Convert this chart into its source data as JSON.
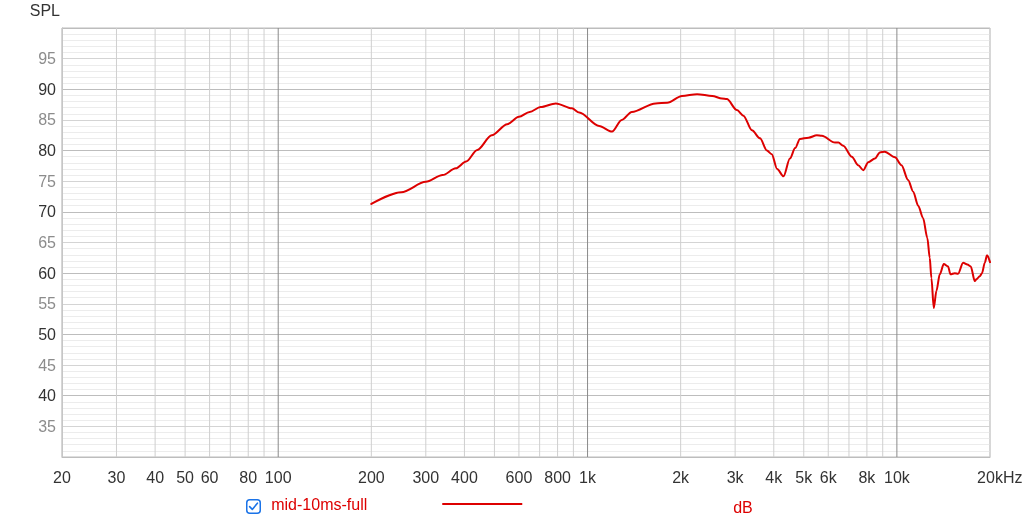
{
  "chart_data": {
    "type": "line",
    "ylabel": "SPL",
    "xlabel": "Hz",
    "annotations": [
      "dB"
    ],
    "log": "x",
    "grid": true,
    "legend": "bottom",
    "marker": "none",
    "line_style": "solid",
    "xlim": [
      20,
      20000
    ],
    "ylim": [
      30,
      100
    ],
    "xticks": [
      20,
      30,
      40,
      50,
      60,
      {
        "value": 70,
        "label": null
      },
      80,
      {
        "value": 90,
        "label": null
      },
      100,
      200,
      300,
      400,
      {
        "value": 500,
        "label": null
      },
      600,
      {
        "value": 700,
        "label": null
      },
      800,
      {
        "value": 900,
        "label": null
      },
      {
        "value": 1000,
        "label": "1k"
      },
      {
        "value": 2000,
        "label": "2k"
      },
      {
        "value": 3000,
        "label": "3k"
      },
      {
        "value": 4000,
        "label": "4k"
      },
      {
        "value": 5000,
        "label": "5k"
      },
      {
        "value": 6000,
        "label": "6k"
      },
      {
        "value": 7000,
        "label": null
      },
      {
        "value": 8000,
        "label": "8k"
      },
      {
        "value": 9000,
        "label": null
      },
      {
        "value": 10000,
        "label": "10k"
      },
      {
        "value": 20000,
        "label": "20k"
      }
    ],
    "yticks": [
      35,
      40,
      45,
      50,
      55,
      60,
      65,
      70,
      75,
      80,
      85,
      90,
      95
    ],
    "series": [
      {
        "name": "mid-10ms-full",
        "color": "#dd0000",
        "x": [
          200,
          250,
          300,
          340,
          375,
          405,
          440,
          490,
          550,
          600,
          650,
          705,
          790,
          890,
          940,
          1090,
          1200,
          1290,
          1390,
          1660,
          1810,
          2020,
          2260,
          2530,
          2720,
          2820,
          3040,
          3190,
          3400,
          3610,
          3800,
          3940,
          4100,
          4300,
          4510,
          4690,
          4860,
          5180,
          5510,
          5720,
          6310,
          6470,
          6710,
          7150,
          7500,
          7790,
          8080,
          8490,
          8810,
          9140,
          9860,
          10350,
          10870,
          11290,
          11720,
          12150,
          12550,
          12770,
          12930,
          13160,
          13420,
          13760,
          14180,
          14640,
          14900,
          15380,
          15770,
          16370,
          16900,
          17330,
          17860,
          18080,
          18530,
          18850,
          19240,
          19560,
          20000
        ],
        "values": [
          71.3,
          73.2,
          74.9,
          76.0,
          77.1,
          78.2,
          80.1,
          82.5,
          84.3,
          85.5,
          86.3,
          87.1,
          87.7,
          86.9,
          86.2,
          84.0,
          83.1,
          85.0,
          86.3,
          87.7,
          87.8,
          88.9,
          89.2,
          88.9,
          88.5,
          88.4,
          86.6,
          85.7,
          83.3,
          82.0,
          80.0,
          79.4,
          77.0,
          75.8,
          78.7,
          80.4,
          81.9,
          82.1,
          82.5,
          82.4,
          81.3,
          81.3,
          80.8,
          79.0,
          77.6,
          76.8,
          78.1,
          78.7,
          79.7,
          79.8,
          78.9,
          77.6,
          75.2,
          73.3,
          71.0,
          69.0,
          65.7,
          62.5,
          59.2,
          54.3,
          57.1,
          59.8,
          61.5,
          61.1,
          59.8,
          60.0,
          59.9,
          61.7,
          61.4,
          61.1,
          58.7,
          59.0,
          59.5,
          60.0,
          61.7,
          62.9,
          61.8
        ]
      }
    ]
  }
}
